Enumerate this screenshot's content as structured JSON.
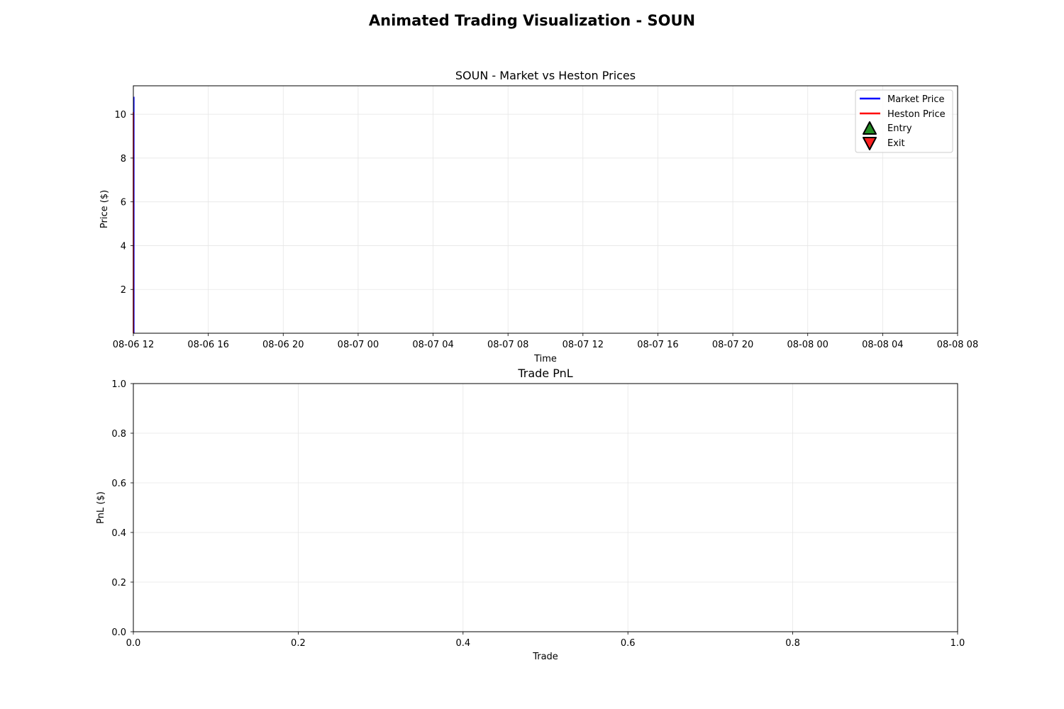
{
  "figure": {
    "title": "Animated Trading Visualization - SOUN"
  },
  "chart_data": [
    {
      "type": "line",
      "title": "SOUN - Market vs Heston Prices",
      "xlabel": "Time",
      "ylabel": "Price ($)",
      "x_ticks": [
        "08-06 12",
        "08-06 16",
        "08-06 20",
        "08-07 00",
        "08-07 04",
        "08-07 08",
        "08-07 12",
        "08-07 16",
        "08-07 20",
        "08-08 00",
        "08-08 04",
        "08-08 08"
      ],
      "x_range": [
        "08-06 12",
        "08-08 08"
      ],
      "y_ticks": [
        2,
        4,
        6,
        8,
        10
      ],
      "ylim": [
        0,
        11.3
      ],
      "grid": true,
      "legend": {
        "placement": "top-right",
        "entries": [
          {
            "label": "Market Price",
            "kind": "line",
            "color": "#0000ff"
          },
          {
            "label": "Heston Price",
            "kind": "line",
            "color": "#ff0000"
          },
          {
            "label": "Entry",
            "kind": "marker-up",
            "color": "#228b22"
          },
          {
            "label": "Exit",
            "kind": "marker-down",
            "color": "#ff2020"
          }
        ]
      },
      "series": [
        {
          "name": "Market Price",
          "color": "#0000ff",
          "x": [
            "08-06 12",
            "08-06 12"
          ],
          "y": [
            0,
            10.8
          ]
        },
        {
          "name": "Heston Price",
          "color": "#ff0000",
          "x": [
            "08-06 12",
            "08-06 12"
          ],
          "y": [
            0,
            10.1
          ]
        }
      ]
    },
    {
      "type": "bar",
      "title": "Trade PnL",
      "xlabel": "Trade",
      "ylabel": "PnL ($)",
      "x_ticks": [
        "0.0",
        "0.2",
        "0.4",
        "0.6",
        "0.8",
        "1.0"
      ],
      "y_ticks": [
        "0.0",
        "0.2",
        "0.4",
        "0.6",
        "0.8",
        "1.0"
      ],
      "xlim": [
        0,
        1
      ],
      "ylim": [
        0,
        1
      ],
      "grid": true,
      "values": []
    }
  ]
}
